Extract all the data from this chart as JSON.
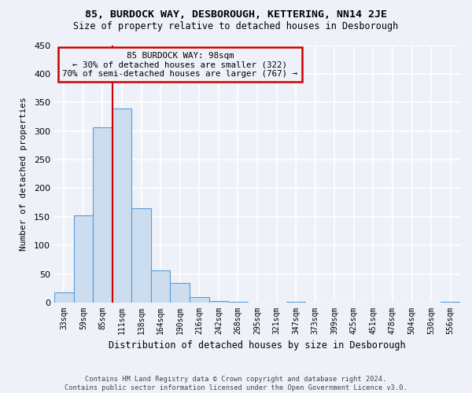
{
  "title": "85, BURDOCK WAY, DESBOROUGH, KETTERING, NN14 2JE",
  "subtitle": "Size of property relative to detached houses in Desborough",
  "xlabel": "Distribution of detached houses by size in Desborough",
  "ylabel": "Number of detached properties",
  "footer_line1": "Contains HM Land Registry data © Crown copyright and database right 2024.",
  "footer_line2": "Contains public sector information licensed under the Open Government Licence v3.0.",
  "bin_labels": [
    "33sqm",
    "59sqm",
    "85sqm",
    "111sqm",
    "138sqm",
    "164sqm",
    "190sqm",
    "216sqm",
    "242sqm",
    "268sqm",
    "295sqm",
    "321sqm",
    "347sqm",
    "373sqm",
    "399sqm",
    "425sqm",
    "451sqm",
    "478sqm",
    "504sqm",
    "530sqm",
    "556sqm"
  ],
  "bar_heights": [
    18,
    152,
    307,
    340,
    165,
    57,
    35,
    10,
    3,
    1,
    0,
    0,
    1,
    0,
    0,
    0,
    0,
    0,
    0,
    0,
    2
  ],
  "bar_color": "#ccddf0",
  "bar_edge_color": "#5b9bd5",
  "ylim": [
    0,
    450
  ],
  "yticks": [
    0,
    50,
    100,
    150,
    200,
    250,
    300,
    350,
    400,
    450
  ],
  "vline_x": 2.5,
  "vline_color": "#cc0000",
  "annotation_title": "85 BURDOCK WAY: 98sqm",
  "annotation_line2": "← 30% of detached houses are smaller (322)",
  "annotation_line3": "70% of semi-detached houses are larger (767) →",
  "annotation_box_color": "#cc0000",
  "background_color": "#eef2f8"
}
